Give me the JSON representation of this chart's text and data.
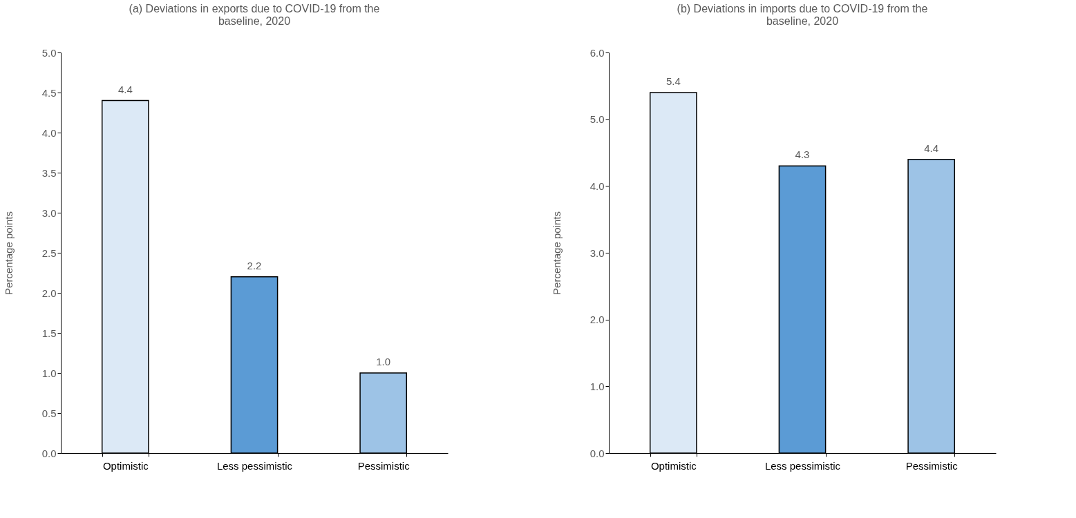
{
  "chart_data": [
    {
      "type": "bar",
      "title": "(a) Deviations in exports due to COVID-19 from the baseline, 2020",
      "ylabel": "Percentage points",
      "categories": [
        "Optimistic",
        "Less pessimistic",
        "Pessimistic"
      ],
      "values": [
        4.4,
        2.2,
        1.0
      ],
      "value_labels": [
        "4.4",
        "2.2",
        "1.0"
      ],
      "colors": [
        "#dce9f6",
        "#5b9bd5",
        "#9dc3e6"
      ],
      "ylim": [
        0,
        5
      ],
      "yticks": [
        {
          "value": 0,
          "label": "0.0"
        },
        {
          "value": 0.5,
          "label": "0.5"
        },
        {
          "value": 1,
          "label": "1.0"
        },
        {
          "value": 1.5,
          "label": "1.5"
        },
        {
          "value": 2,
          "label": "2.0"
        },
        {
          "value": 2.5,
          "label": "2.5"
        },
        {
          "value": 3,
          "label": "3.0"
        },
        {
          "value": 3.5,
          "label": "3.5"
        },
        {
          "value": 4,
          "label": "4.0"
        },
        {
          "value": 4.5,
          "label": "4.5"
        },
        {
          "value": 5,
          "label": "5.0"
        }
      ],
      "grid": false
    },
    {
      "type": "bar",
      "title": "(b) Deviations in imports due to COVID-19 from the baseline, 2020",
      "ylabel": "Percentage points",
      "categories": [
        "Optimistic",
        "Less pessimistic",
        "Pessimistic"
      ],
      "values": [
        5.4,
        4.3,
        4.4
      ],
      "value_labels": [
        "5.4",
        "4.3",
        "4.4"
      ],
      "colors": [
        "#dce9f6",
        "#5b9bd5",
        "#9dc3e6"
      ],
      "ylim": [
        0,
        6
      ],
      "yticks": [
        {
          "value": 0,
          "label": "0.0"
        },
        {
          "value": 1,
          "label": "1.0"
        },
        {
          "value": 2,
          "label": "2.0"
        },
        {
          "value": 3,
          "label": "3.0"
        },
        {
          "value": 4,
          "label": "4.0"
        },
        {
          "value": 5,
          "label": "5.0"
        },
        {
          "value": 6,
          "label": "6.0"
        }
      ],
      "grid": false
    }
  ]
}
